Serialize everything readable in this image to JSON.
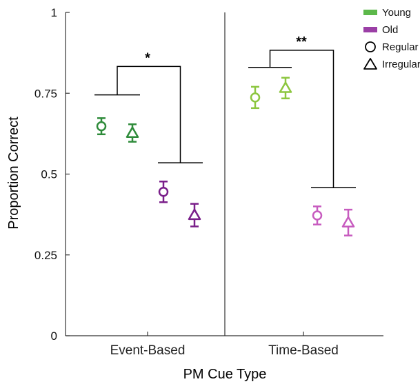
{
  "chart_data": {
    "type": "scatter",
    "title": "",
    "xlabel": "PM Cue Type",
    "ylabel": "Proportion Correct",
    "ylim": [
      0,
      1
    ],
    "yticks": [
      {
        "value": 0,
        "label": "0"
      },
      {
        "value": 0.25,
        "label": "0.25"
      },
      {
        "value": 0.5,
        "label": "0.5"
      },
      {
        "value": 0.75,
        "label": "0.75"
      },
      {
        "value": 1,
        "label": "1"
      }
    ],
    "categories": [
      "Event-Based",
      "Time-Based"
    ],
    "grid": false,
    "legend_position": "top-right",
    "legend": [
      {
        "label": "Young",
        "kind": "swatch",
        "color": "#5cb84a"
      },
      {
        "label": "Old",
        "kind": "swatch",
        "color": "#9b3fa6"
      },
      {
        "label": "Regular",
        "kind": "circle"
      },
      {
        "label": "Irregular",
        "kind": "triangle"
      }
    ],
    "series": [
      {
        "group": "Young",
        "marker": "circle",
        "color_event": "#2e8b3a",
        "color_time": "#8cc63f",
        "values": [
          0.648,
          0.737
        ],
        "errors": [
          0.025,
          0.033
        ]
      },
      {
        "group": "Young",
        "marker": "triangle",
        "color_event": "#2e8b3a",
        "color_time": "#8cc63f",
        "values": [
          0.627,
          0.766
        ],
        "errors": [
          0.027,
          0.032
        ]
      },
      {
        "group": "Old",
        "marker": "circle",
        "color_event": "#7a1f8a",
        "color_time": "#c75bbf",
        "values": [
          0.445,
          0.372
        ],
        "errors": [
          0.032,
          0.028
        ]
      },
      {
        "group": "Old",
        "marker": "triangle",
        "color_event": "#7a1f8a",
        "color_time": "#c75bbf",
        "values": [
          0.373,
          0.35
        ],
        "errors": [
          0.035,
          0.04
        ]
      }
    ],
    "significance": [
      {
        "category": "Event-Based",
        "label": "*",
        "upper_y": 0.745,
        "lower_y": 0.535,
        "top_y": 0.833
      },
      {
        "category": "Time-Based",
        "label": "**",
        "upper_y": 0.83,
        "lower_y": 0.458,
        "top_y": 0.883
      }
    ]
  }
}
